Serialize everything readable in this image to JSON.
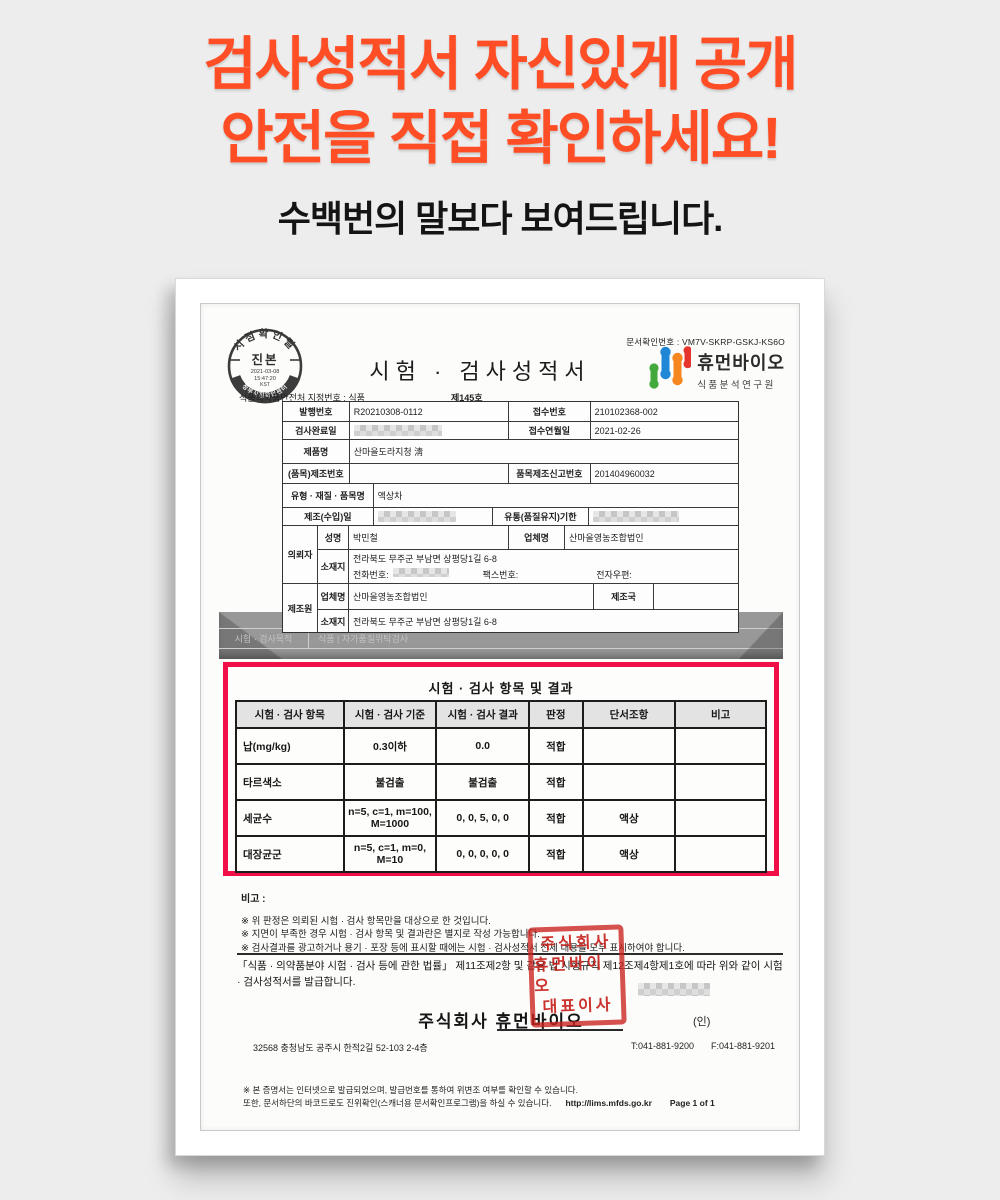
{
  "banner": {
    "line1": "검사성적서 자신있게 공개",
    "line2": "안전을 직접 확인하세요!",
    "subtitle": "수백번의 말보다 보여드립니다.",
    "accent_color": "#FF4E25"
  },
  "doc": {
    "check_no": "문서확인번호 : VM7V-SKRP-GSKJ-KS6O",
    "title": "시험 · 검사성적서",
    "designation": "식품의약품안전처 지정번호 : 식품",
    "designation_no": "제145호",
    "stamp": {
      "arc_top": "시점확인필",
      "center": "진본",
      "date": "2021-03-08",
      "time": "15:47:20",
      "tz": "KST",
      "arc_bottom": "정부시점확인센터"
    },
    "logo": {
      "name": "휴먼바이오",
      "sub": "식품분석연구원",
      "colors": {
        "green": "#43A93D",
        "blue": "#1F87D6",
        "orange": "#F6861F",
        "red": "#E5352C"
      }
    },
    "info": {
      "r1": {
        "l1": "발행번호",
        "v1": "R20210308-0112",
        "l2": "접수번호",
        "v2": "210102368-002"
      },
      "r2": {
        "l1": "검사완료일",
        "l2": "접수연월일",
        "v2": "2021-02-26"
      },
      "r3": {
        "l1": "제품명",
        "v1": "산마을도라지청 淸"
      },
      "r4": {
        "l1": "(품목)제조번호",
        "v1": "",
        "l2": "품목제조신고번호",
        "v2": "201404960032"
      },
      "r5": {
        "l1": "유형 · 재질 · 품목명",
        "v1": "액상차"
      },
      "r6": {
        "l1": "제조(수입)일",
        "l2": "유통(품질유지)기한"
      },
      "r7": {
        "group": "의뢰자",
        "l1": "성명",
        "v1": "박민철",
        "l2": "업체명",
        "v2": "산마을영농조합법인"
      },
      "r8": {
        "l1": "소재지",
        "v1": "전라북도 무주군 부남면 상평당1길 6-8",
        "tel_label": "전화번호:",
        "fax_label": "팩스번호:",
        "email_label": "전자우편:"
      },
      "r9": {
        "group": "제조원",
        "l1": "업체명",
        "v1": "산마을영농조합법인",
        "l2": "제조국",
        "v2": ""
      },
      "r10": {
        "l1": "소재지",
        "v1": "전라북도 무주군 부남면 상평당1길 6-8"
      }
    },
    "purpose": {
      "label": "시험 · 검사목적",
      "value": "식품 | 자가품질위탁검사"
    }
  },
  "results": {
    "title": "시험 · 검사 항목 및 결과",
    "border_color": "#F01047",
    "headers": [
      "시험 · 검사 항목",
      "시험 · 검사 기준",
      "시험 · 검사 결과",
      "판정",
      "단서조항",
      "비고"
    ],
    "rows": [
      [
        "납(mg/kg)",
        "0.3이하",
        "0.0",
        "적합",
        "",
        ""
      ],
      [
        "타르색소",
        "불검출",
        "불검출",
        "적합",
        "",
        ""
      ],
      [
        "세균수",
        "n=5, c=1, m=100,\nM=1000",
        "0, 0, 5, 0, 0",
        "적합",
        "액상",
        ""
      ],
      [
        "대장균군",
        "n=5, c=1, m=0,\nM=10",
        "0, 0, 0, 0, 0",
        "적합",
        "액상",
        ""
      ]
    ]
  },
  "notes": {
    "remark": "비고 :",
    "bullets": [
      "※ 위 판정은 의뢰된 시험 · 검사 항목만을 대상으로 한 것입니다.",
      "※ 지면이 부족한 경우 시험 · 검사 항목 및 결과란은 별지로 작성 가능합니다.",
      "※ 검사결과를 광고하거나 용기 · 포장 등에 표시할 때에는 시험 · 검사성적서 전체 내용을 모두 표시하여야 합니다."
    ],
    "legal": "「식품 · 의약품분야 시험 · 검사 등에 관한 법률」 제11조제2항 및 같은 법 시행규칙 제12조제4항제1호에 따라 위와 같이 시험 · 검사성적서를 발급합니다."
  },
  "signature": {
    "company": "주식회사 휴먼바이오",
    "seal_lines": [
      "주식회사",
      "휴먼바이오",
      "대표이사"
    ],
    "suffix": "(인)"
  },
  "contact": {
    "address": "32568 충청남도 공주시  한적2길 52-103  2-4층",
    "tel": "T:041-881-9200",
    "fax": "F:041-881-9201"
  },
  "footer": {
    "line1": "※ 본 증명서는 인터넷으로 발급되었으며, 발급번호를 통하여 위변조 여부를 확인할 수 있습니다.",
    "line2": "또한, 문서하단의 바코드로도 진위확인(스캐너용 문서확인프로그램)을 하실 수 있습니다.",
    "url": "http://lims.mfds.go.kr",
    "page": "Page 1 of 1"
  }
}
